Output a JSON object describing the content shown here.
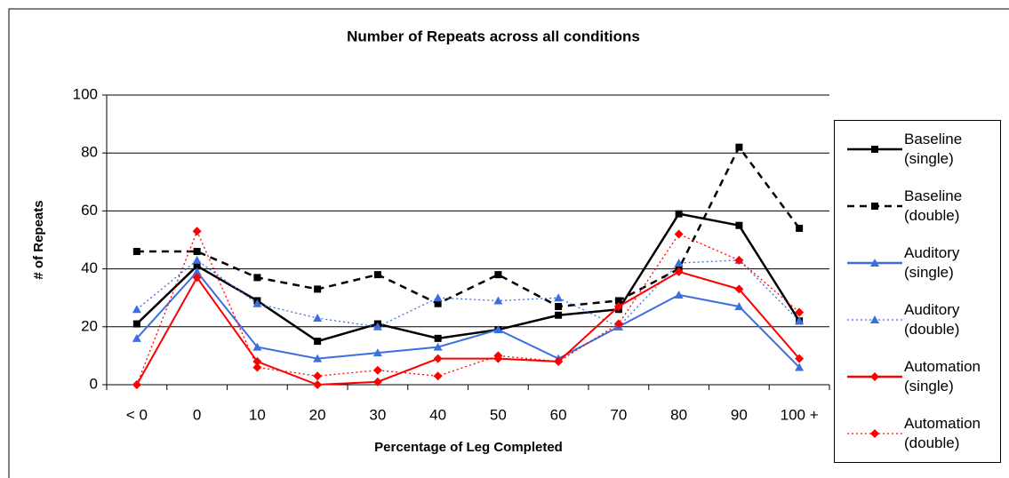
{
  "chart_data": {
    "type": "line",
    "title": "Number of Repeats across all conditions",
    "x_label": "Percentage of Leg Completed",
    "y_label": "# of Repeats",
    "categories": [
      "< 0",
      "0",
      "10",
      "20",
      "30",
      "40",
      "50",
      "60",
      "70",
      "80",
      "90",
      "100 +"
    ],
    "ylim": [
      0,
      100
    ],
    "yticks": [
      0,
      20,
      40,
      60,
      80,
      100
    ],
    "grid": true,
    "legend": "right",
    "series": [
      {
        "name": "Baseline (single)",
        "color": "#000000",
        "dash": "solid",
        "marker": "square",
        "values": [
          21,
          41,
          29,
          15,
          21,
          16,
          19,
          24,
          26,
          59,
          55,
          22
        ]
      },
      {
        "name": "Baseline (double)",
        "color": "#000000",
        "dash": "dashed",
        "marker": "square",
        "values": [
          46,
          46,
          37,
          33,
          38,
          28,
          38,
          27,
          29,
          40,
          82,
          54
        ]
      },
      {
        "name": "Auditory (single)",
        "color": "#3b6fe0",
        "dash": "solid",
        "marker": "triangle",
        "values": [
          16,
          39,
          13,
          9,
          11,
          13,
          19,
          9,
          20,
          31,
          27,
          6
        ]
      },
      {
        "name": "Auditory (double)",
        "color": "#3b6fe0",
        "dash": "dotted",
        "marker": "triangle",
        "values": [
          26,
          43,
          28,
          23,
          20,
          30,
          29,
          30,
          20,
          42,
          43,
          22
        ]
      },
      {
        "name": "Automation (single)",
        "color": "#ff0000",
        "dash": "solid",
        "marker": "diamond",
        "values": [
          0,
          37,
          8,
          0,
          1,
          9,
          9,
          8,
          27,
          39,
          33,
          9
        ]
      },
      {
        "name": "Automation (double)",
        "color": "#ff0000",
        "dash": "dotted",
        "marker": "diamond",
        "values": [
          0,
          53,
          6,
          3,
          5,
          3,
          10,
          8,
          21,
          52,
          43,
          25
        ]
      }
    ]
  }
}
